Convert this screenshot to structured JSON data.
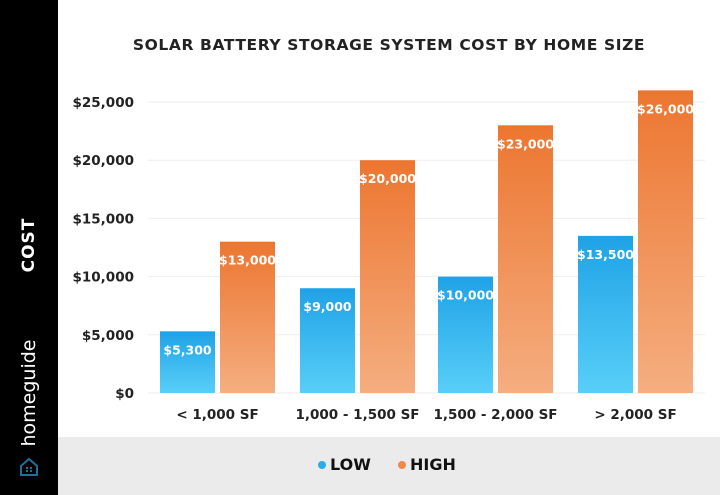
{
  "chart_data": {
    "type": "bar",
    "title": "SOLAR BATTERY STORAGE SYSTEM COST BY HOME SIZE",
    "ylabel": "COST",
    "xlabel": "",
    "categories": [
      "< 1,000 SF",
      "1,000 - 1,500 SF",
      "1,500 - 2,000 SF",
      "> 2,000 SF"
    ],
    "series": [
      {
        "name": "LOW",
        "values": [
          5300,
          9000,
          10000,
          13500
        ],
        "labels": [
          "$5,300",
          "$9,000",
          "$10,000",
          "$13,500"
        ],
        "color": "#2aaeea"
      },
      {
        "name": "HIGH",
        "values": [
          13000,
          20000,
          23000,
          26000
        ],
        "labels": [
          "$13,000",
          "$20,000",
          "$23,000",
          "$26,000"
        ],
        "color": "#f08a4b"
      }
    ],
    "ylim": [
      0,
      25000
    ],
    "yticks": [
      0,
      5000,
      10000,
      15000,
      20000,
      25000
    ],
    "ytick_labels": [
      "$0",
      "$5,000",
      "$10,000",
      "$15,000",
      "$20,000",
      "$25,000"
    ],
    "grid": true,
    "legend_position": "bottom"
  },
  "brand": {
    "logo_text": "homeguide",
    "logo_icon": "house-icon",
    "accent": "#1f6f9e"
  }
}
